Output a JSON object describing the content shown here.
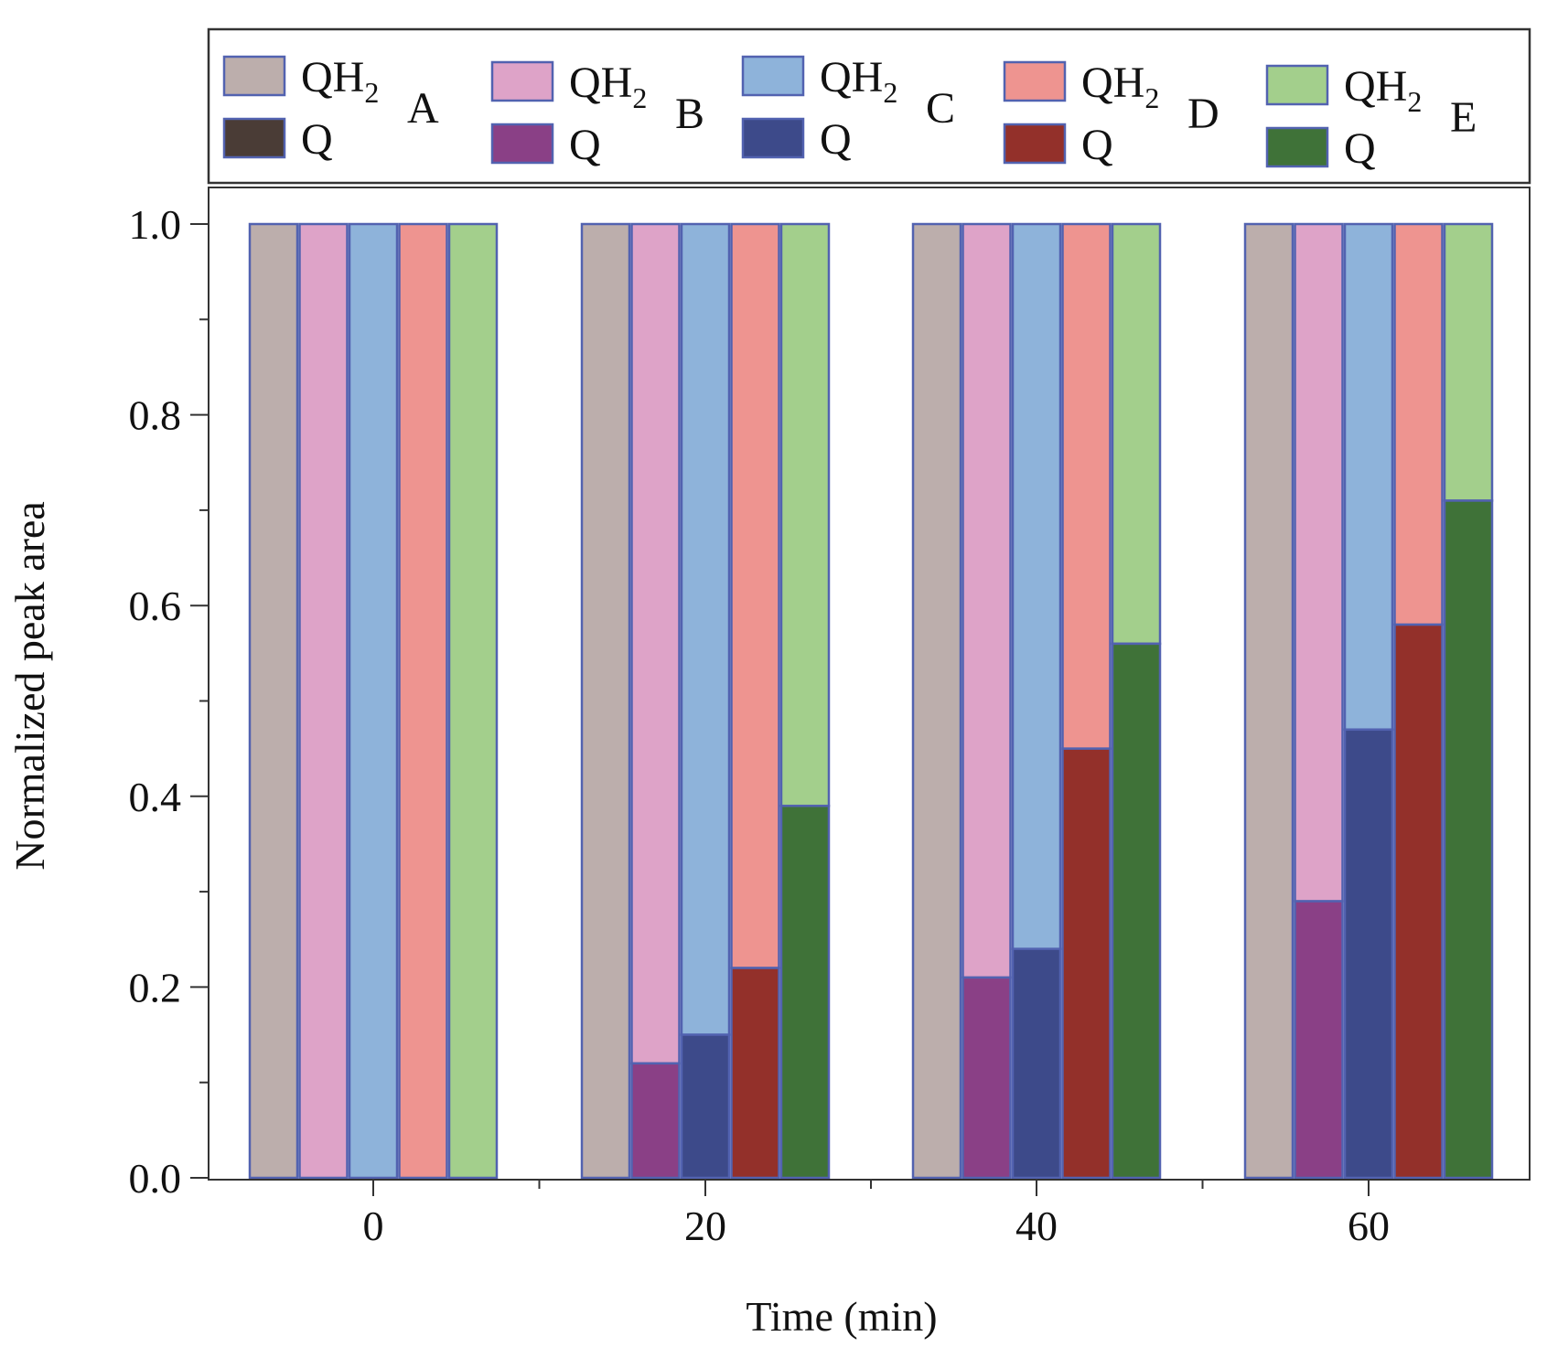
{
  "chart_data": {
    "type": "bar",
    "stacked": true,
    "title": "",
    "xlabel": "Time (min)",
    "ylabel": "Normalized peak area",
    "ylim": [
      0,
      1.0
    ],
    "yticks": [
      "0.0",
      "0.2",
      "0.4",
      "0.6",
      "0.8",
      "1.0"
    ],
    "categories": [
      "0",
      "20",
      "40",
      "60"
    ],
    "groups": [
      {
        "id": "A",
        "label": "A",
        "qh2_label": "QH",
        "qh2_sub": "2",
        "q_label": "Q",
        "qh2_color": "#bcaeac",
        "q_color": "#4a3c36",
        "q_values": [
          0,
          0,
          0,
          0
        ]
      },
      {
        "id": "B",
        "label": "B",
        "qh2_label": "QH",
        "qh2_sub": "2",
        "q_label": "Q",
        "qh2_color": "#dea3c8",
        "q_color": "#8a4086",
        "q_values": [
          0,
          0.12,
          0.21,
          0.29
        ]
      },
      {
        "id": "C",
        "label": "C",
        "qh2_label": "QH",
        "qh2_sub": "2",
        "q_label": "Q",
        "qh2_color": "#8eb3da",
        "q_color": "#3d4a8a",
        "q_values": [
          0,
          0.15,
          0.24,
          0.47
        ]
      },
      {
        "id": "D",
        "label": "D",
        "qh2_label": "QH",
        "qh2_sub": "2",
        "q_label": "Q",
        "qh2_color": "#ee9490",
        "q_color": "#93302a",
        "q_values": [
          0,
          0.22,
          0.45,
          0.58
        ]
      },
      {
        "id": "E",
        "label": "E",
        "qh2_label": "QH",
        "qh2_sub": "2",
        "q_label": "Q",
        "qh2_color": "#a3cf8c",
        "q_color": "#3f7238",
        "q_values": [
          0,
          0.39,
          0.56,
          0.71
        ]
      }
    ],
    "legend_position": "top",
    "bar_edge_color": "#5262b0"
  }
}
